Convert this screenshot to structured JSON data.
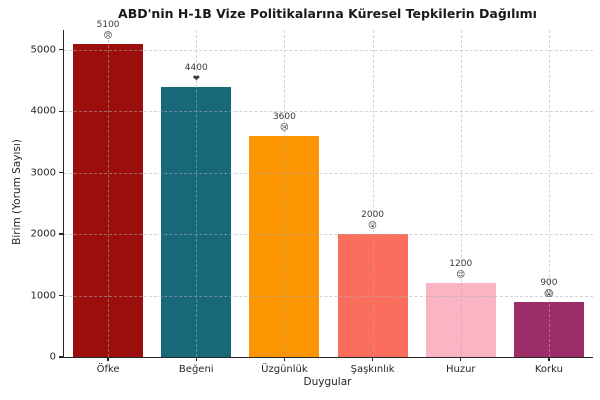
{
  "title": "ABD'nin H-1B Vize Politikalarına Küresel Tepkilerin Dağılımı",
  "chart_data": {
    "type": "bar",
    "title": "ABD'nin H-1B Vize Politikalarına Küresel Tepkilerin Dağılımı",
    "xlabel": "Duygular",
    "ylabel": "Birim (Yorum Sayısı)",
    "categories": [
      "Öfke",
      "Beğeni",
      "Üzgünlük",
      "Şaşkınlık",
      "Huzur",
      "Korku"
    ],
    "values": [
      5100,
      4400,
      3600,
      2000,
      1200,
      900
    ],
    "bar_value_labels": [
      "5100",
      "4400",
      "3600",
      "2000",
      "1200",
      "900"
    ],
    "bar_emojis": [
      "😠",
      "❤",
      "😢",
      "😲",
      "😌",
      "😱"
    ],
    "bar_emoji_names": [
      "angry-face-icon",
      "heart-icon",
      "crying-face-icon",
      "astonished-face-icon",
      "relieved-face-icon",
      "fearful-face-icon"
    ],
    "bar_colors": [
      "#9B0E0E",
      "#17697A",
      "#FB9502",
      "#FB6D5C",
      "#FBB4C3",
      "#9C2D69"
    ],
    "yticks": [
      0,
      1000,
      2000,
      3000,
      4000,
      5000
    ],
    "ytick_labels": [
      "0",
      "1000",
      "2000",
      "3000",
      "4000",
      "5000"
    ],
    "ylim": [
      0,
      5320
    ],
    "grid": "dashed, horizontal and vertical",
    "legend_position": "none",
    "background_color": "#ffffff",
    "axis_color": "#262626"
  }
}
